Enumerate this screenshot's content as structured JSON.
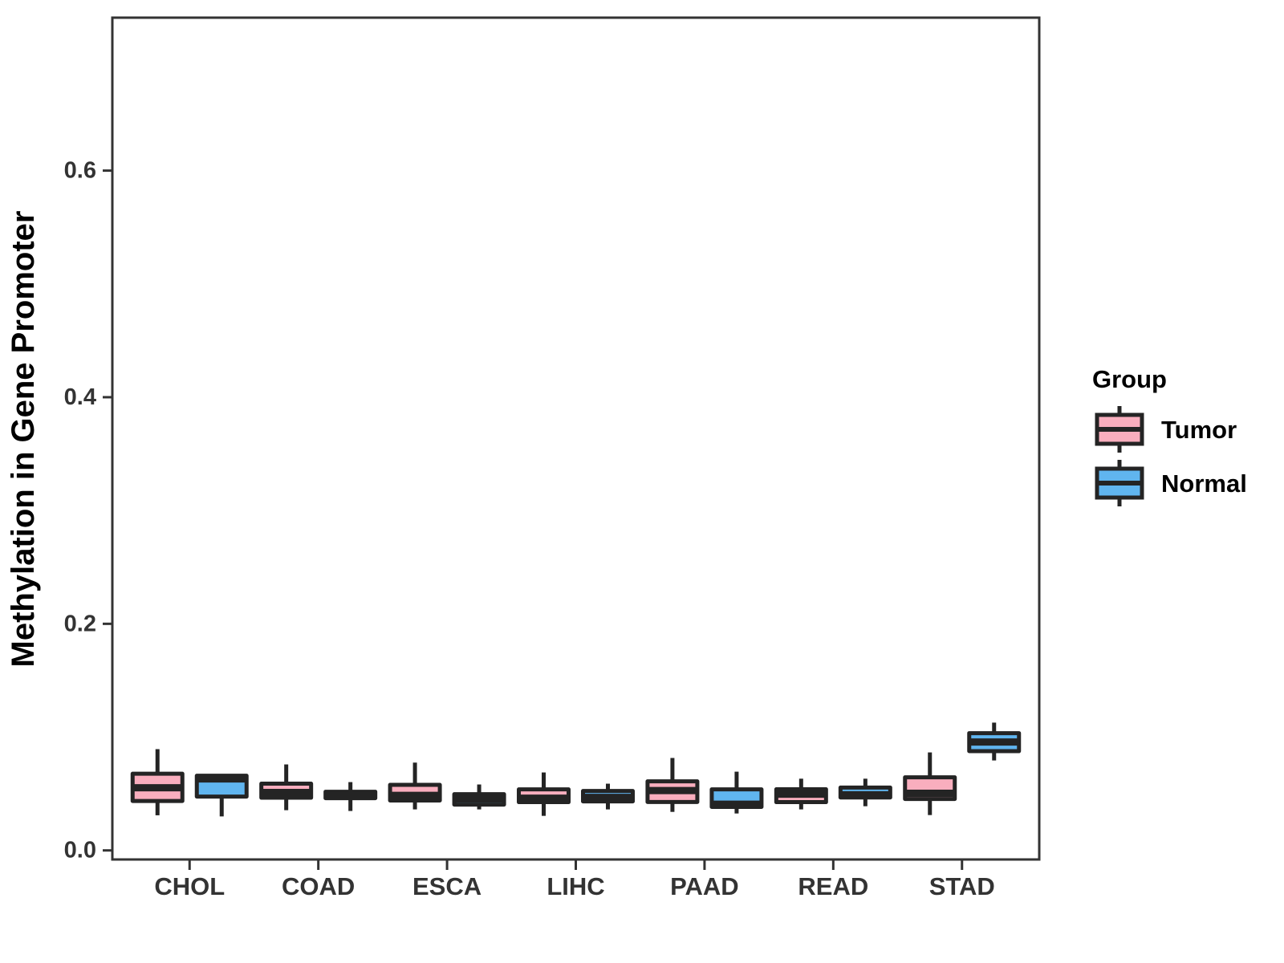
{
  "chart_data": {
    "type": "boxplot",
    "title": "",
    "xlabel": "",
    "ylabel": "Methylation in Gene Promoter",
    "categories": [
      "CHOL",
      "COAD",
      "ESCA",
      "LIHC",
      "PAAD",
      "READ",
      "STAD"
    ],
    "ytick_values": [
      0.0,
      0.2,
      0.4,
      0.6
    ],
    "ytick_labels": [
      "0.0",
      "0.2",
      "0.4",
      "0.6"
    ],
    "ylim": [
      -0.008,
      0.735
    ],
    "grid": false,
    "legend": {
      "title": "Group",
      "position": "right",
      "entries": [
        {
          "label": "Tumor",
          "color": "#F9AEBE"
        },
        {
          "label": "Normal",
          "color": "#60B5EF"
        }
      ]
    },
    "colors": {
      "tumor_fill": "#F9AEBE",
      "normal_fill": "#60B5EF",
      "box_stroke": "#242424",
      "axis": "#333333"
    },
    "series": [
      {
        "name": "Tumor",
        "color": "#F9AEBE",
        "boxes": [
          {
            "category": "CHOL",
            "min": 0.031,
            "q1": 0.0436,
            "median": 0.0553,
            "q3": 0.0677,
            "max": 0.0894
          },
          {
            "category": "COAD",
            "min": 0.0355,
            "q1": 0.0465,
            "median": 0.0511,
            "q3": 0.0589,
            "max": 0.0759
          },
          {
            "category": "ESCA",
            "min": 0.0362,
            "q1": 0.0441,
            "median": 0.0486,
            "q3": 0.0579,
            "max": 0.0775
          },
          {
            "category": "LIHC",
            "min": 0.0305,
            "q1": 0.0426,
            "median": 0.0461,
            "q3": 0.0539,
            "max": 0.0688
          },
          {
            "category": "PAAD",
            "min": 0.034,
            "q1": 0.0427,
            "median": 0.0528,
            "q3": 0.061,
            "max": 0.0816
          },
          {
            "category": "READ",
            "min": 0.0362,
            "q1": 0.0426,
            "median": 0.0496,
            "q3": 0.054,
            "max": 0.0633
          },
          {
            "category": "STAD",
            "min": 0.0312,
            "q1": 0.0454,
            "median": 0.0504,
            "q3": 0.0645,
            "max": 0.0865
          }
        ]
      },
      {
        "name": "Normal",
        "color": "#60B5EF",
        "boxes": [
          {
            "category": "CHOL",
            "min": 0.03,
            "q1": 0.0475,
            "median": 0.0631,
            "q3": 0.0659,
            "max": 0.0666
          },
          {
            "category": "COAD",
            "min": 0.0348,
            "q1": 0.0461,
            "median": 0.0489,
            "q3": 0.0518,
            "max": 0.0603
          },
          {
            "category": "ESCA",
            "min": 0.0362,
            "q1": 0.0404,
            "median": 0.0454,
            "q3": 0.0496,
            "max": 0.0582
          },
          {
            "category": "LIHC",
            "min": 0.0362,
            "q1": 0.0433,
            "median": 0.0468,
            "q3": 0.0525,
            "max": 0.0589
          },
          {
            "category": "PAAD",
            "min": 0.0326,
            "q1": 0.0384,
            "median": 0.0408,
            "q3": 0.0539,
            "max": 0.0695
          },
          {
            "category": "READ",
            "min": 0.039,
            "q1": 0.0467,
            "median": 0.0491,
            "q3": 0.0555,
            "max": 0.0633
          },
          {
            "category": "STAD",
            "min": 0.0794,
            "q1": 0.0876,
            "median": 0.0957,
            "q3": 0.1035,
            "max": 0.1128
          }
        ]
      }
    ]
  }
}
